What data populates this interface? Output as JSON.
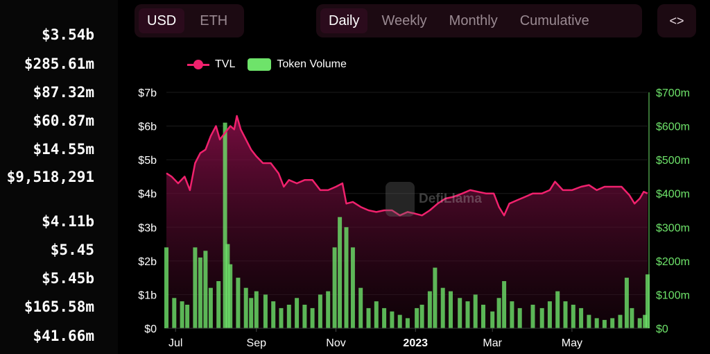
{
  "stats": [
    "$3.54b",
    "$285.61m",
    "$87.32m",
    "$60.87m",
    "$14.55m",
    "$9,518,291",
    "$4.11b",
    "$5.45",
    "$5.45b",
    "$165.58m",
    "$41.66m"
  ],
  "currency_toggle": {
    "options": [
      "USD",
      "ETH"
    ],
    "selected": "USD"
  },
  "period_toggle": {
    "options": [
      "Daily",
      "Weekly",
      "Monthly",
      "Cumulative"
    ],
    "selected": "Daily"
  },
  "embed_icon": "code-brackets-icon",
  "watermark": "DefiLlama",
  "chart_data": {
    "type": "line",
    "legend": [
      "TVL",
      "Token Volume"
    ],
    "legend_position": "top-left",
    "colors": {
      "tvl": "#f0216d",
      "volume": "#6ee36a"
    },
    "x_labels": [
      "Jul",
      "Sep",
      "Nov",
      "2023",
      "Mar",
      "May"
    ],
    "x_label_positions": [
      "2022-07-01",
      "2022-09-01",
      "2022-11-01",
      "2023-01-01",
      "2023-03-01",
      "2023-05-01"
    ],
    "x_range": [
      "2022-06-24",
      "2023-06-28"
    ],
    "y_left": {
      "ticks": [
        "$0",
        "$1b",
        "$2b",
        "$3b",
        "$4b",
        "$5b",
        "$6b",
        "$7b"
      ],
      "range": [
        0,
        7
      ]
    },
    "y_right": {
      "ticks": [
        "$0",
        "$100m",
        "$200m",
        "$300m",
        "$400m",
        "$500m",
        "$600m",
        "$700m"
      ],
      "range": [
        0,
        700
      ]
    },
    "grid": true,
    "series": [
      {
        "name": "TVL",
        "axis": "left",
        "points": [
          [
            "2022-06-24",
            4.6
          ],
          [
            "2022-06-28",
            4.5
          ],
          [
            "2022-07-03",
            4.3
          ],
          [
            "2022-07-08",
            4.5
          ],
          [
            "2022-07-12",
            4.1
          ],
          [
            "2022-07-16",
            4.9
          ],
          [
            "2022-07-20",
            5.2
          ],
          [
            "2022-07-24",
            5.3
          ],
          [
            "2022-07-28",
            5.7
          ],
          [
            "2022-08-01",
            6.0
          ],
          [
            "2022-08-04",
            5.6
          ],
          [
            "2022-08-08",
            5.8
          ],
          [
            "2022-08-12",
            6.0
          ],
          [
            "2022-08-15",
            5.9
          ],
          [
            "2022-08-17",
            6.3
          ],
          [
            "2022-08-20",
            5.9
          ],
          [
            "2022-08-24",
            5.6
          ],
          [
            "2022-08-28",
            5.3
          ],
          [
            "2022-09-01",
            5.1
          ],
          [
            "2022-09-06",
            4.9
          ],
          [
            "2022-09-12",
            4.9
          ],
          [
            "2022-09-18",
            4.6
          ],
          [
            "2022-09-22",
            4.2
          ],
          [
            "2022-09-26",
            4.4
          ],
          [
            "2022-10-02",
            4.3
          ],
          [
            "2022-10-08",
            4.4
          ],
          [
            "2022-10-14",
            4.4
          ],
          [
            "2022-10-20",
            4.1
          ],
          [
            "2022-10-26",
            4.1
          ],
          [
            "2022-11-01",
            4.2
          ],
          [
            "2022-11-06",
            4.3
          ],
          [
            "2022-11-09",
            3.7
          ],
          [
            "2022-11-14",
            3.75
          ],
          [
            "2022-11-20",
            3.6
          ],
          [
            "2022-11-26",
            3.5
          ],
          [
            "2022-12-02",
            3.45
          ],
          [
            "2022-12-08",
            3.5
          ],
          [
            "2022-12-14",
            3.5
          ],
          [
            "2022-12-20",
            3.35
          ],
          [
            "2022-12-26",
            3.45
          ],
          [
            "2023-01-01",
            3.4
          ],
          [
            "2023-01-06",
            3.35
          ],
          [
            "2023-01-12",
            3.5
          ],
          [
            "2023-01-18",
            3.7
          ],
          [
            "2023-01-24",
            3.85
          ],
          [
            "2023-01-30",
            3.9
          ],
          [
            "2023-02-06",
            4.0
          ],
          [
            "2023-02-12",
            4.1
          ],
          [
            "2023-02-18",
            4.05
          ],
          [
            "2023-02-24",
            4.0
          ],
          [
            "2023-03-02",
            4.0
          ],
          [
            "2023-03-06",
            3.6
          ],
          [
            "2023-03-10",
            3.35
          ],
          [
            "2023-03-14",
            3.7
          ],
          [
            "2023-03-20",
            3.8
          ],
          [
            "2023-03-26",
            3.9
          ],
          [
            "2023-04-01",
            4.0
          ],
          [
            "2023-04-08",
            4.0
          ],
          [
            "2023-04-14",
            4.1
          ],
          [
            "2023-04-18",
            4.35
          ],
          [
            "2023-04-24",
            4.1
          ],
          [
            "2023-05-01",
            4.1
          ],
          [
            "2023-05-08",
            4.2
          ],
          [
            "2023-05-14",
            4.25
          ],
          [
            "2023-05-20",
            4.1
          ],
          [
            "2023-05-26",
            4.2
          ],
          [
            "2023-06-01",
            4.2
          ],
          [
            "2023-06-08",
            4.2
          ],
          [
            "2023-06-14",
            3.95
          ],
          [
            "2023-06-18",
            3.7
          ],
          [
            "2023-06-22",
            3.85
          ],
          [
            "2023-06-25",
            4.05
          ],
          [
            "2023-06-28",
            4.0
          ]
        ]
      },
      {
        "name": "Token Volume",
        "axis": "right",
        "points": [
          [
            "2022-06-24",
            240
          ],
          [
            "2022-06-30",
            90
          ],
          [
            "2022-07-06",
            80
          ],
          [
            "2022-07-10",
            70
          ],
          [
            "2022-07-16",
            240
          ],
          [
            "2022-07-20",
            210
          ],
          [
            "2022-07-24",
            230
          ],
          [
            "2022-07-28",
            120
          ],
          [
            "2022-08-03",
            140
          ],
          [
            "2022-08-08",
            610
          ],
          [
            "2022-08-10",
            250
          ],
          [
            "2022-08-12",
            190
          ],
          [
            "2022-08-18",
            150
          ],
          [
            "2022-08-24",
            120
          ],
          [
            "2022-08-28",
            90
          ],
          [
            "2022-09-01",
            110
          ],
          [
            "2022-09-08",
            100
          ],
          [
            "2022-09-14",
            80
          ],
          [
            "2022-09-20",
            60
          ],
          [
            "2022-09-26",
            70
          ],
          [
            "2022-10-02",
            90
          ],
          [
            "2022-10-08",
            70
          ],
          [
            "2022-10-14",
            60
          ],
          [
            "2022-10-20",
            100
          ],
          [
            "2022-10-26",
            110
          ],
          [
            "2022-10-31",
            240
          ],
          [
            "2022-11-04",
            330
          ],
          [
            "2022-11-09",
            300
          ],
          [
            "2022-11-14",
            240
          ],
          [
            "2022-11-20",
            120
          ],
          [
            "2022-11-26",
            60
          ],
          [
            "2022-12-02",
            80
          ],
          [
            "2022-12-08",
            60
          ],
          [
            "2022-12-14",
            50
          ],
          [
            "2022-12-20",
            40
          ],
          [
            "2022-12-26",
            30
          ],
          [
            "2023-01-02",
            60
          ],
          [
            "2023-01-06",
            70
          ],
          [
            "2023-01-12",
            110
          ],
          [
            "2023-01-16",
            180
          ],
          [
            "2023-01-22",
            120
          ],
          [
            "2023-01-28",
            110
          ],
          [
            "2023-02-04",
            90
          ],
          [
            "2023-02-10",
            80
          ],
          [
            "2023-02-16",
            100
          ],
          [
            "2023-02-22",
            70
          ],
          [
            "2023-03-01",
            50
          ],
          [
            "2023-03-06",
            90
          ],
          [
            "2023-03-10",
            140
          ],
          [
            "2023-03-16",
            80
          ],
          [
            "2023-03-22",
            60
          ],
          [
            "2023-04-01",
            70
          ],
          [
            "2023-04-08",
            60
          ],
          [
            "2023-04-14",
            80
          ],
          [
            "2023-04-20",
            110
          ],
          [
            "2023-04-26",
            80
          ],
          [
            "2023-05-02",
            70
          ],
          [
            "2023-05-08",
            60
          ],
          [
            "2023-05-14",
            40
          ],
          [
            "2023-05-20",
            30
          ],
          [
            "2023-05-26",
            25
          ],
          [
            "2023-06-01",
            30
          ],
          [
            "2023-06-07",
            40
          ],
          [
            "2023-06-12",
            150
          ],
          [
            "2023-06-16",
            60
          ],
          [
            "2023-06-22",
            30
          ],
          [
            "2023-06-26",
            40
          ],
          [
            "2023-06-28",
            160
          ]
        ]
      }
    ]
  }
}
